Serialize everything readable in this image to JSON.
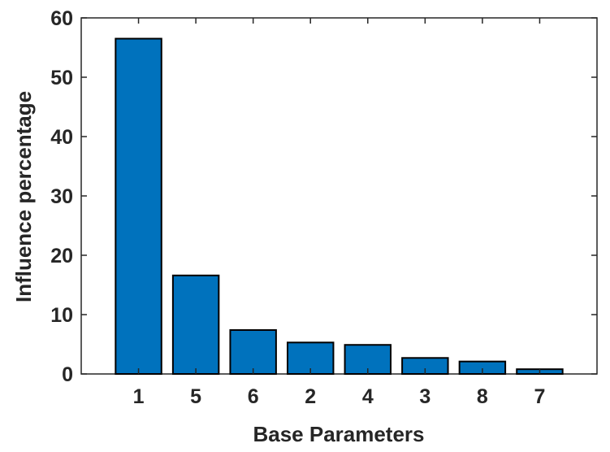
{
  "chart_data": {
    "type": "bar",
    "title": "",
    "xlabel": "Base Parameters",
    "ylabel": "Influence percentage",
    "categories": [
      "1",
      "5",
      "6",
      "2",
      "4",
      "3",
      "8",
      "7"
    ],
    "values": [
      56.5,
      16.6,
      7.4,
      5.3,
      4.9,
      2.7,
      2.1,
      0.8
    ],
    "ylim": [
      0,
      60
    ],
    "yticks": [
      0,
      10,
      20,
      30,
      40,
      50,
      60
    ],
    "bar_color": "#0072BD",
    "edge_color": "#000000",
    "grid": false,
    "box": true
  }
}
